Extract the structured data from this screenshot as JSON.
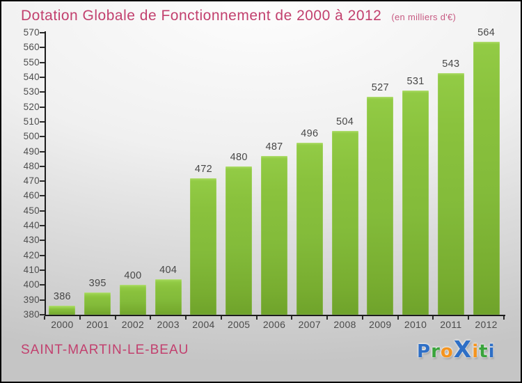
{
  "title": "Dotation Globale de Fonctionnement de 2000 à 2012",
  "subtitle": "(en milliers d'€)",
  "footer": {
    "commune": "SAINT-MARTIN-LE-BEAU"
  },
  "logo": {
    "name": "Proxiti",
    "letters": [
      {
        "char": "P",
        "color": "#2e6fc6"
      },
      {
        "char": "r",
        "color": "#3aa43c"
      },
      {
        "char": "o",
        "color": "#f5941e"
      },
      {
        "char": "X",
        "color": "#2e6fc6",
        "emphasis": true
      },
      {
        "char": "i",
        "color": "#f5941e"
      },
      {
        "char": "t",
        "color": "#3aa43c"
      },
      {
        "char": "i",
        "color": "#2e6fc6"
      }
    ]
  },
  "colors": {
    "accent_pink": "#c2406e",
    "bar_green": "#8ac23d",
    "axis": "#1c1c1c",
    "label_gray": "#4a4a4a"
  },
  "chart_data": {
    "type": "bar",
    "title": "Dotation Globale de Fonctionnement de 2000 à 2012",
    "unit_note": "(en milliers d'€)",
    "categories": [
      "2000",
      "2001",
      "2002",
      "2003",
      "2004",
      "2005",
      "2006",
      "2007",
      "2008",
      "2009",
      "2010",
      "2011",
      "2012"
    ],
    "values": [
      386,
      395,
      400,
      404,
      472,
      480,
      487,
      496,
      504,
      527,
      531,
      543,
      564
    ],
    "xlabel": "",
    "ylabel": "",
    "ylim": [
      380,
      570
    ],
    "ytick_step": 10,
    "grid": false,
    "legend_position": "none",
    "value_labels": true,
    "bar_color": "#8ac23d"
  }
}
